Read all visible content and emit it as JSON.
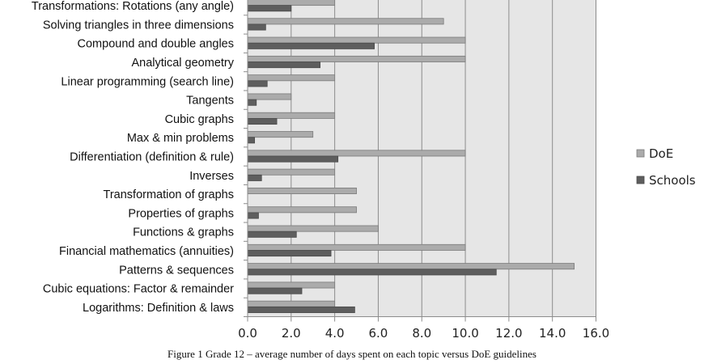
{
  "chart_data": {
    "type": "bar",
    "orientation": "horizontal",
    "title": "",
    "xlabel": "",
    "ylabel": "",
    "xlim": [
      0,
      16
    ],
    "x_ticks": [
      "0.0",
      "2.0",
      "4.0",
      "6.0",
      "8.0",
      "10.0",
      "12.0",
      "14.0",
      "16.0"
    ],
    "grid": true,
    "legend_position": "right",
    "categories": [
      "Transformations: Rotations (any angle)",
      "Solving triangles in three dimensions",
      "Compound and double angles",
      "Analytical geometry",
      "Linear programming (search line)",
      "Tangents",
      "Cubic graphs",
      "Max & min problems",
      "Differentiation (definition & rule)",
      "Inverses",
      "Transformation of graphs",
      "Properties of graphs",
      "Functions & graphs",
      "Financial mathematics (annuities)",
      "Patterns & sequences",
      "Cubic equations: Factor & remainder",
      "Logarithms: Definition & laws"
    ],
    "series": [
      {
        "name": "DoE",
        "color": "#ababab",
        "values": [
          4,
          9,
          10,
          10,
          4,
          2,
          4,
          3,
          10,
          4,
          5,
          5,
          6,
          10,
          15,
          4,
          4
        ]
      },
      {
        "name": "Schools",
        "color": "#5e5e5e",
        "values": [
          2.0,
          0.83,
          5.82,
          3.33,
          0.9,
          0.4,
          1.34,
          0.32,
          4.15,
          0.64,
          0,
          0.5,
          2.24,
          3.83,
          11.42,
          2.49,
          4.92
        ]
      }
    ]
  },
  "caption": "Figure 1  Grade 12 – average number of days spent on each topic versus DoE guidelines"
}
